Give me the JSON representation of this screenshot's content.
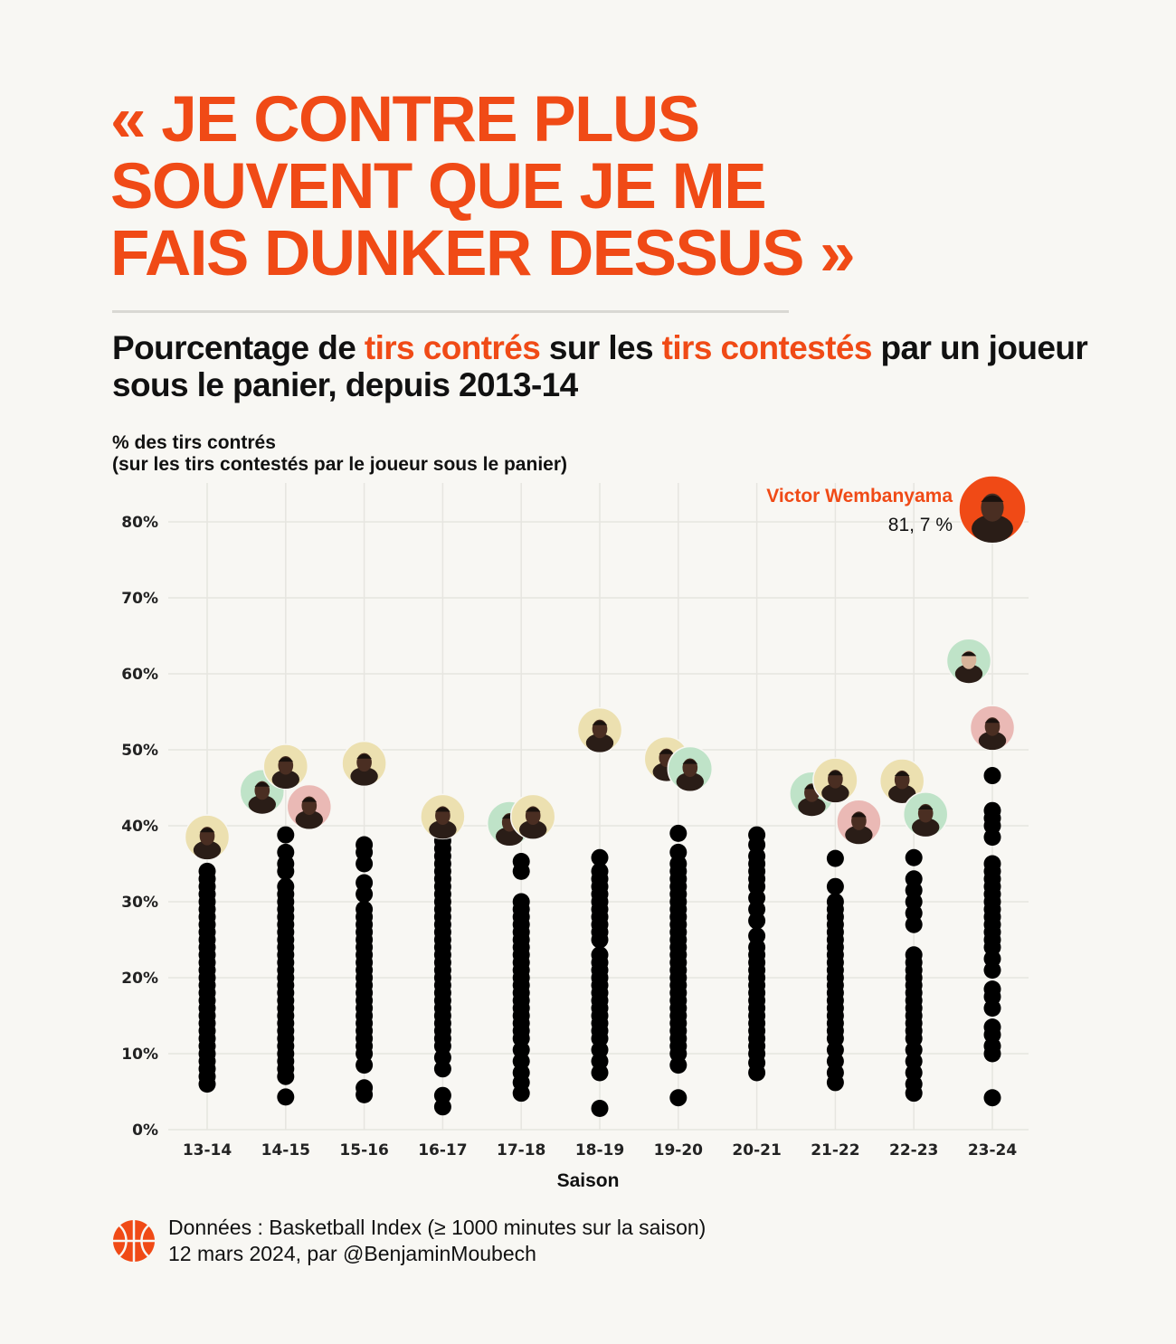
{
  "headline": {
    "line1": "« JE CONTRE PLUS",
    "line2": "SOUVENT QUE JE ME",
    "line3": "FAIS DUNKER DESSUS »"
  },
  "subtitle": {
    "part1": "Pourcentage de ",
    "hl1": "tirs contrés",
    "part2": " sur les ",
    "hl2": "tirs contestés",
    "part3": " par un joueur sous le panier, depuis 2013-14"
  },
  "colors": {
    "accent": "#f04a16",
    "dots": "#000000",
    "background": "#f8f7f3",
    "face_green": "#bfe3c8",
    "face_beige": "#ece0b0",
    "face_pink": "#eab9b5"
  },
  "chart_data": {
    "type": "scatter",
    "xlabel": "Saison",
    "ylabel_line1": "% des tirs contrés",
    "ylabel_line2": "(sur les tirs contestés par le joueur sous le panier)",
    "ylim": [
      0,
      85
    ],
    "yticks": [
      0,
      10,
      20,
      30,
      40,
      50,
      60,
      70,
      80
    ],
    "ytick_labels": [
      "0%",
      "10%",
      "20%",
      "30%",
      "40%",
      "50%",
      "60%",
      "70%",
      "80%"
    ],
    "categories": [
      "13-14",
      "14-15",
      "15-16",
      "16-17",
      "17-18",
      "18-19",
      "19-20",
      "20-21",
      "21-22",
      "22-23",
      "23-24"
    ],
    "series": [
      {
        "season": "13-14",
        "values": [
          6,
          7,
          8,
          9,
          10,
          11,
          12,
          13,
          14,
          15,
          16,
          17,
          18,
          19,
          20,
          21,
          22,
          23,
          24,
          25,
          26,
          27,
          28,
          29,
          30,
          31,
          32,
          33,
          34
        ]
      },
      {
        "season": "14-15",
        "values": [
          4.3,
          7,
          8,
          9,
          10,
          11,
          12,
          13,
          14,
          15,
          16,
          17,
          18,
          19,
          20,
          21,
          22,
          23,
          24,
          25,
          26,
          27,
          28,
          29,
          30,
          31,
          32,
          34,
          35,
          36.5,
          38.8
        ]
      },
      {
        "season": "15-16",
        "values": [
          4.6,
          5.5,
          8.5,
          10,
          11,
          12,
          13,
          14,
          15,
          16,
          17,
          18,
          19,
          20,
          21,
          22,
          23,
          24,
          25,
          26,
          27,
          28,
          29,
          31,
          32.5,
          35,
          36.5,
          37.5
        ]
      },
      {
        "season": "16-17",
        "values": [
          3,
          4.5,
          8,
          9.5,
          11,
          12,
          13,
          14,
          15,
          16,
          17,
          18,
          19,
          20,
          21,
          22,
          23,
          24,
          25,
          26,
          27,
          28,
          29,
          30,
          31,
          32,
          33,
          34,
          35,
          36,
          37,
          38
        ]
      },
      {
        "season": "17-18",
        "values": [
          4.8,
          6.2,
          7.5,
          9,
          10.5,
          12,
          13,
          14,
          15,
          16,
          17,
          18,
          19,
          20,
          21,
          22,
          23,
          24,
          25,
          26,
          27,
          28,
          29,
          30,
          34,
          35.3
        ]
      },
      {
        "season": "18-19",
        "values": [
          2.8,
          7.5,
          9,
          10.5,
          12,
          13,
          14,
          15,
          16,
          17,
          18,
          19,
          20,
          21,
          22,
          23,
          25,
          26,
          27,
          28,
          29,
          30,
          31,
          32,
          33,
          34,
          35.8
        ]
      },
      {
        "season": "19-20",
        "values": [
          4.2,
          8.5,
          10,
          11,
          12,
          13,
          14,
          15,
          16,
          17,
          18,
          19,
          20,
          21,
          22,
          23,
          24,
          25,
          26,
          27,
          28,
          29,
          30,
          31,
          32,
          33,
          34,
          35,
          36.5,
          39
        ]
      },
      {
        "season": "20-21",
        "values": [
          7.5,
          8.8,
          10,
          11,
          12,
          13,
          14,
          15,
          16,
          17,
          18,
          19,
          20,
          21,
          22,
          23,
          24,
          25.5,
          27.5,
          29,
          30.5,
          32,
          33,
          34,
          35,
          36,
          37.5,
          38.8
        ]
      },
      {
        "season": "21-22",
        "values": [
          6.2,
          7.5,
          9,
          10.5,
          12,
          13,
          14,
          15,
          16,
          17,
          18,
          19,
          20,
          21,
          22,
          23,
          24,
          25,
          26,
          27,
          28,
          29,
          30,
          32,
          35.7
        ]
      },
      {
        "season": "22-23",
        "values": [
          4.8,
          6,
          7.5,
          9,
          10.5,
          12,
          13,
          14,
          15,
          16,
          17,
          18,
          19,
          20,
          21,
          22,
          23,
          27,
          28.5,
          30,
          31.5,
          33,
          35.8
        ]
      },
      {
        "season": "23-24",
        "values": [
          4.2,
          10,
          11,
          12.5,
          13.5,
          16,
          17.5,
          18.5,
          21,
          22.5,
          24,
          25,
          26,
          27,
          28,
          29,
          30,
          31,
          32,
          33,
          34,
          35,
          38.5,
          40,
          41,
          42,
          46.6
        ]
      }
    ],
    "highlighted_players": [
      {
        "season": "13-14",
        "value": 38.5,
        "bg": "beige"
      },
      {
        "season": "14-15",
        "value": 44.5,
        "bg": "green"
      },
      {
        "season": "14-15",
        "value": 47.8,
        "bg": "beige"
      },
      {
        "season": "14-15",
        "value": 42.5,
        "bg": "pink"
      },
      {
        "season": "15-16",
        "value": 48.2,
        "bg": "beige"
      },
      {
        "season": "16-17",
        "value": 41.2,
        "bg": "beige"
      },
      {
        "season": "17-18",
        "value": 40.3,
        "bg": "green"
      },
      {
        "season": "17-18",
        "value": 41.2,
        "bg": "beige"
      },
      {
        "season": "18-19",
        "value": 52.6,
        "bg": "beige"
      },
      {
        "season": "19-20",
        "value": 48.8,
        "bg": "beige"
      },
      {
        "season": "19-20",
        "value": 47.5,
        "bg": "green"
      },
      {
        "season": "21-22",
        "value": 44.2,
        "bg": "green"
      },
      {
        "season": "21-22",
        "value": 46.0,
        "bg": "beige"
      },
      {
        "season": "21-22",
        "value": 40.5,
        "bg": "pink"
      },
      {
        "season": "22-23",
        "value": 45.9,
        "bg": "beige"
      },
      {
        "season": "22-23",
        "value": 41.5,
        "bg": "green"
      },
      {
        "season": "23-24",
        "value": 61.7,
        "bg": "green"
      },
      {
        "season": "23-24",
        "value": 52.9,
        "bg": "pink"
      },
      {
        "season": "23-24",
        "value": 81.7,
        "bg": "orange"
      }
    ],
    "annotation": {
      "name": "Victor Wembanyama",
      "value_text": "81, 7 %",
      "season": "23-24",
      "value": 81.7
    }
  },
  "footer": {
    "icon": "basketball-icon",
    "line1": "Données : Basketball Index (≥ 1000 minutes sur la saison)",
    "line2": "12 mars 2024, par @BenjaminMoubech"
  }
}
